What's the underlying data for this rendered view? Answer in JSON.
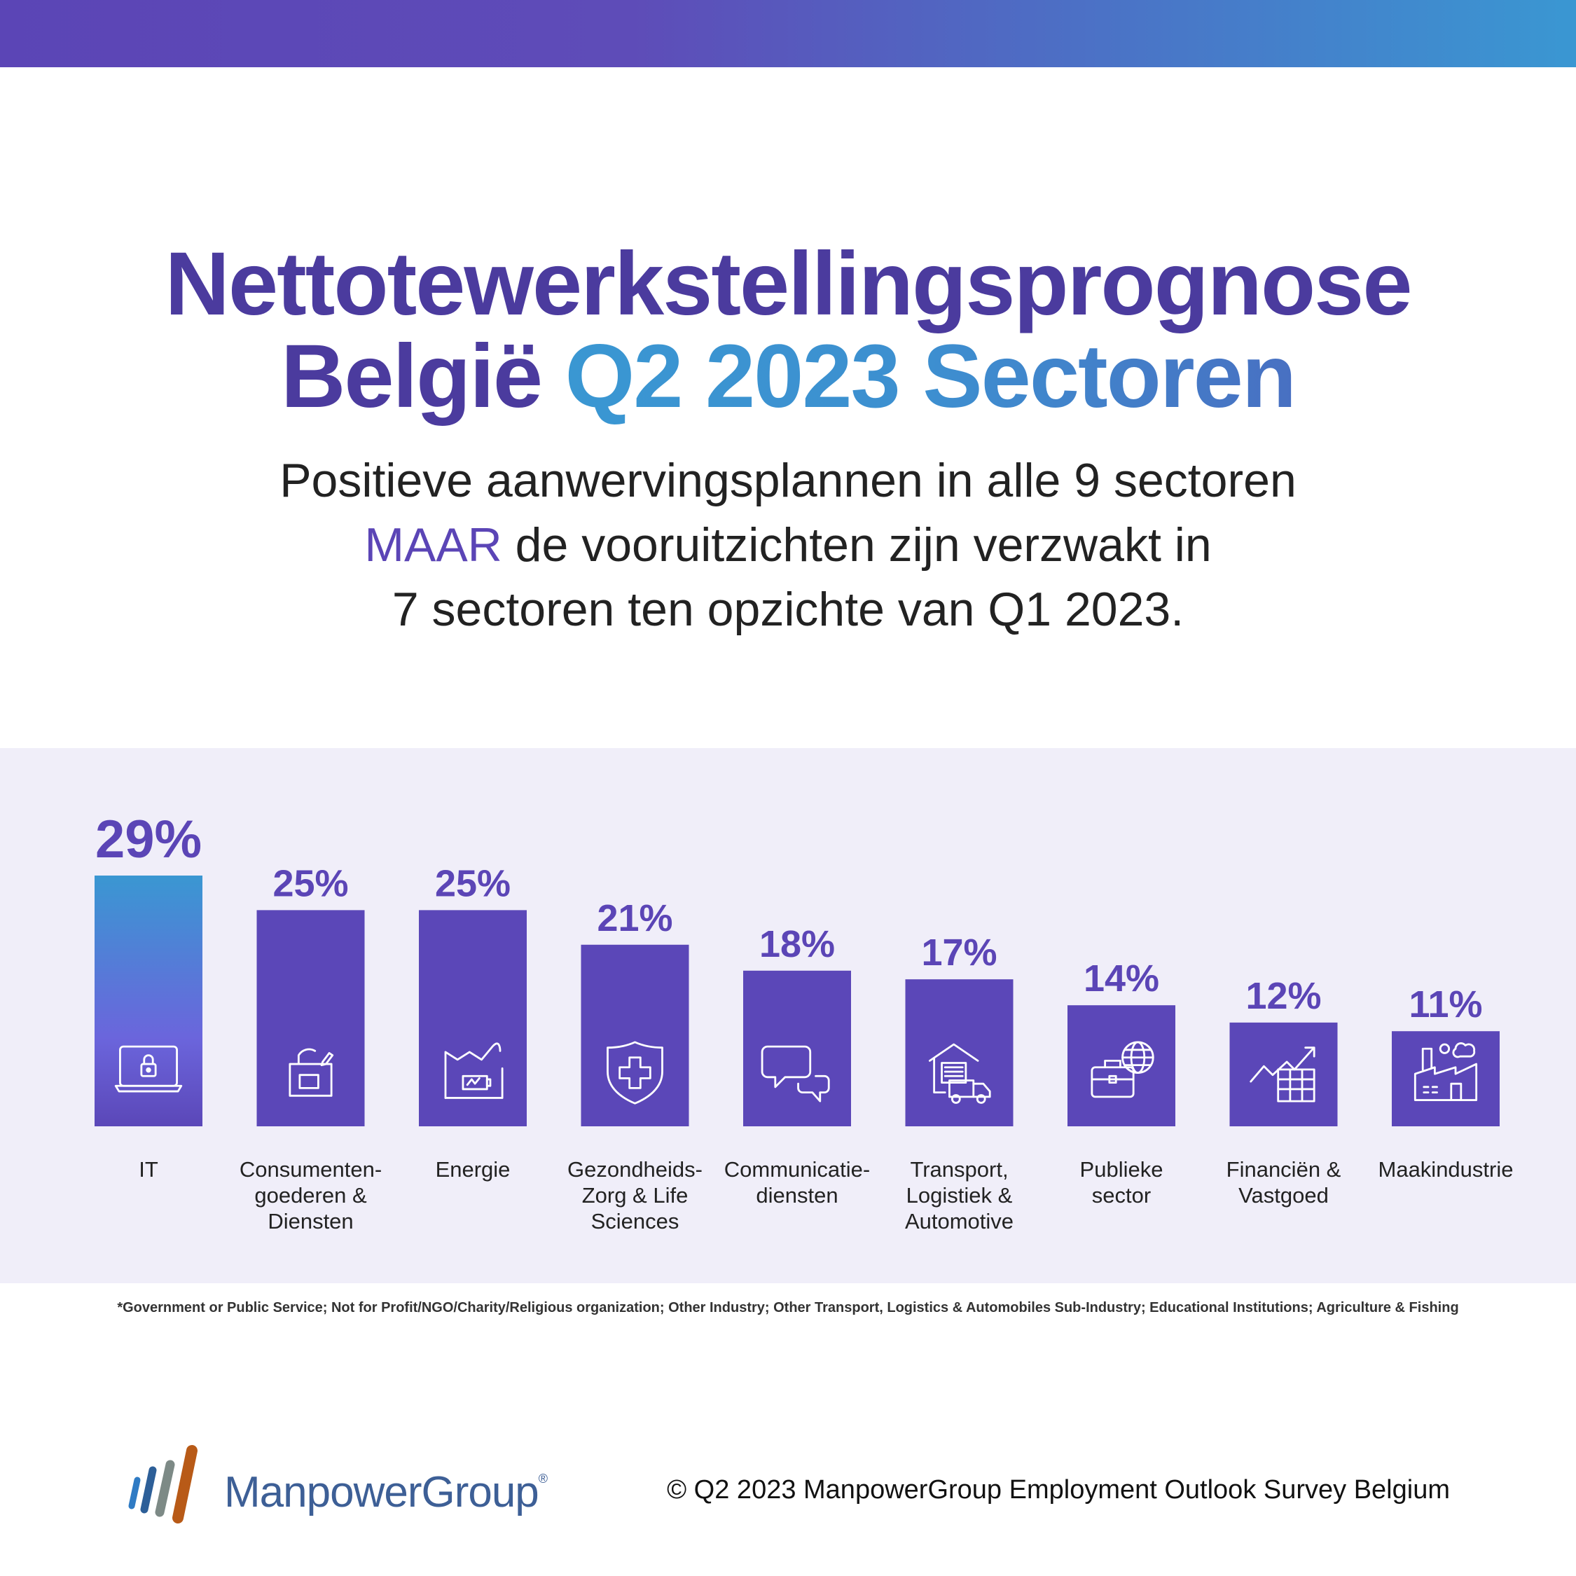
{
  "header": {
    "title_line1": "Nettotewerkstellingsprognose",
    "title_line2_a": "België ",
    "title_line2_b": "Q2 2023 Sectoren",
    "subtitle_line1": "Positieve aanwervingsplannen in alle 9 sectoren",
    "subtitle_maar": "MAAR",
    "subtitle_line2_rest": " de vooruitzichten zijn verzwakt in",
    "subtitle_line3": "7 sectoren ten opzichte van Q1 2023."
  },
  "colors": {
    "bar": "#5b47b8",
    "bar_gradient_top": "#3a97d2",
    "value_label": "#5b45b6",
    "panel": "#f0eef9"
  },
  "chart_data": {
    "type": "bar",
    "title": "",
    "xlabel": "",
    "ylabel": "",
    "ylim": [
      0,
      29
    ],
    "grid": false,
    "categories": [
      [
        "IT"
      ],
      [
        "Consumenten-",
        "goederen &",
        "Diensten"
      ],
      [
        "Energie"
      ],
      [
        "Gezondheids-",
        "Zorg & Life",
        "Sciences"
      ],
      [
        "Communicatie-",
        "diensten"
      ],
      [
        "Transport,",
        "Logistiek &",
        "Automotive"
      ],
      [
        "Publieke",
        "sector"
      ],
      [
        "Financiën &",
        "Vastgoed"
      ],
      [
        "Maakindustrie"
      ]
    ],
    "values": [
      29,
      25,
      25,
      21,
      18,
      17,
      14,
      12,
      11
    ],
    "value_labels": [
      "29%",
      "25%",
      "25%",
      "21%",
      "18%",
      "17%",
      "14%",
      "12%",
      "11%"
    ],
    "icons": [
      "laptop-lock-icon",
      "shopping-bag-icon",
      "factory-battery-icon",
      "shield-cross-icon",
      "chat-bubbles-icon",
      "warehouse-truck-icon",
      "briefcase-globe-icon",
      "growth-chart-icon",
      "factory-icon"
    ]
  },
  "footnote": "*Government or Public Service; Not for Profit/NGO/Charity/Religious organization; Other Industry; Other Transport, Logistics & Automobiles Sub-Industry; Educational Institutions; Agriculture & Fishing",
  "logo": {
    "text": "ManpowerGroup",
    "mark": "®"
  },
  "copyright": "© Q2 2023 ManpowerGroup Employment Outlook Survey Belgium"
}
